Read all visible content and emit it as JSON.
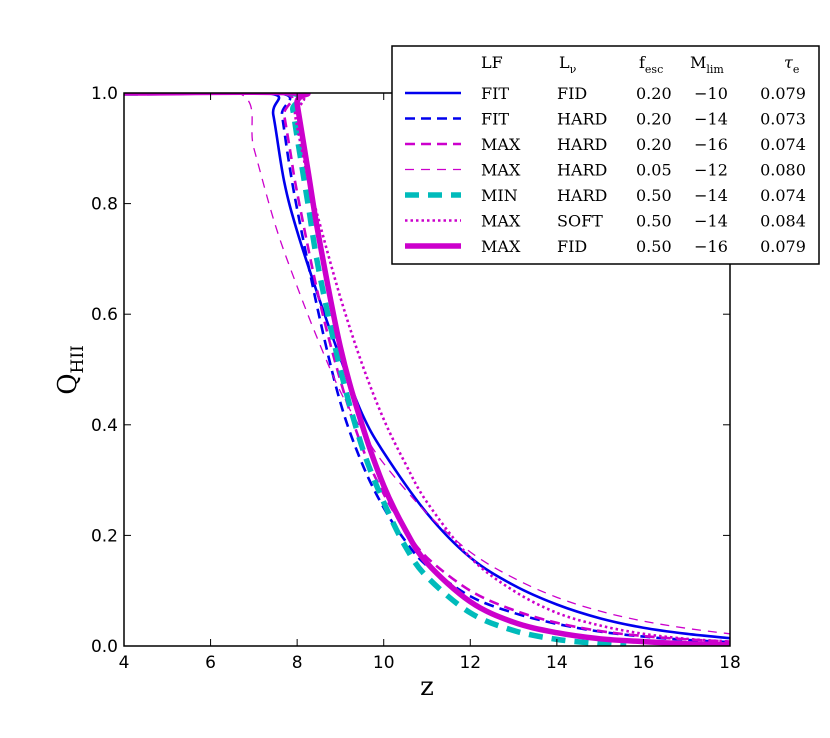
{
  "chart_data": {
    "type": "line",
    "title": "",
    "xlabel": "z",
    "ylabel_main": "Q",
    "ylabel_sub": "HII",
    "xlim": [
      4,
      18
    ],
    "ylim": [
      0.0,
      1.0
    ],
    "xticks": [
      4,
      6,
      8,
      10,
      12,
      14,
      16,
      18
    ],
    "xtick_labels": [
      "4",
      "6",
      "8",
      "10",
      "12",
      "14",
      "16",
      "18"
    ],
    "yticks": [
      0.0,
      0.2,
      0.4,
      0.6,
      0.8,
      1.0
    ],
    "ytick_labels": [
      "0.0",
      "0.2",
      "0.4",
      "0.6",
      "0.8",
      "1.0"
    ],
    "grid": false,
    "legend_position": "top-right",
    "legend_headers": {
      "lf": "LF",
      "lnu_main": "L",
      "lnu_sub": "ν",
      "fesc_main": "f",
      "fesc_sub": "esc",
      "mlim_main": "M",
      "mlim_sub": "lim",
      "tau_main": "τ",
      "tau_sub": "e"
    },
    "series": [
      {
        "name": "FIT FID 0.20 −10 0.079",
        "lf": "FIT",
        "lnu": "FID",
        "fesc": "0.20",
        "mlim": "−10",
        "tau": "0.079",
        "color": "#0000ee",
        "style": "solid",
        "weight": "medium",
        "x": [
          4,
          7.3,
          7.45,
          7.7,
          8.0,
          8.5,
          9.0,
          9.5,
          10.0,
          11.0,
          12.0,
          13.0,
          14.0,
          15.0,
          16.0,
          17.0,
          18.0
        ],
        "y": [
          1.0,
          1.0,
          0.96,
          0.84,
          0.75,
          0.63,
          0.52,
          0.42,
          0.35,
          0.24,
          0.16,
          0.11,
          0.075,
          0.05,
          0.033,
          0.022,
          0.014
        ]
      },
      {
        "name": "FIT HARD 0.20 −14 0.073",
        "lf": "FIT",
        "lnu": "HARD",
        "fesc": "0.20",
        "mlim": "−14",
        "tau": "0.073",
        "color": "#0000ee",
        "style": "dashed",
        "weight": "medium",
        "x": [
          4,
          7.55,
          7.65,
          7.8,
          8.0,
          8.5,
          9.0,
          9.5,
          10.0,
          10.5,
          11.0,
          12.0,
          13.0,
          14.0,
          15.0,
          16.0,
          17.0,
          18.0
        ],
        "y": [
          1.0,
          1.0,
          0.96,
          0.88,
          0.79,
          0.6,
          0.44,
          0.33,
          0.25,
          0.19,
          0.145,
          0.09,
          0.06,
          0.04,
          0.026,
          0.017,
          0.011,
          0.007
        ]
      },
      {
        "name": "MAX HARD 0.20 −16 0.074",
        "lf": "MAX",
        "lnu": "HARD",
        "fesc": "0.20",
        "mlim": "−16",
        "tau": "0.074",
        "color": "#cc00cc",
        "style": "dashed",
        "weight": "medium",
        "x": [
          4,
          7.6,
          7.7,
          7.85,
          8.0,
          8.5,
          9.0,
          9.5,
          10.0,
          10.5,
          11.0,
          12.0,
          13.0,
          14.0,
          15.0,
          16.0,
          17.0,
          18.0
        ],
        "y": [
          1.0,
          1.0,
          0.96,
          0.89,
          0.82,
          0.63,
          0.48,
          0.36,
          0.275,
          0.21,
          0.16,
          0.1,
          0.065,
          0.042,
          0.027,
          0.018,
          0.012,
          0.008
        ]
      },
      {
        "name": "MAX HARD 0.05 −12 0.080",
        "lf": "MAX",
        "lnu": "HARD",
        "fesc": "0.05",
        "mlim": "−12",
        "tau": "0.080",
        "color": "#cc00cc",
        "style": "dashed",
        "weight": "thin",
        "x": [
          4,
          6.65,
          7.0,
          7.5,
          8.0,
          8.5,
          9.0,
          9.5,
          10.0,
          11.0,
          12.0,
          13.0,
          14.0,
          15.0,
          16.0,
          17.0,
          18.0
        ],
        "y": [
          1.0,
          1.0,
          0.9,
          0.76,
          0.65,
          0.55,
          0.46,
          0.39,
          0.33,
          0.24,
          0.17,
          0.123,
          0.088,
          0.063,
          0.045,
          0.032,
          0.022
        ]
      },
      {
        "name": "MIN HARD 0.50 −14 0.074",
        "lf": "MIN",
        "lnu": "HARD",
        "fesc": "0.50",
        "mlim": "−14",
        "tau": "0.074",
        "color": "#00bbbb",
        "style": "dashed",
        "weight": "thick",
        "x": [
          4,
          7.8,
          7.9,
          8.0,
          8.25,
          8.5,
          9.0,
          9.5,
          10.0,
          10.5,
          11.0,
          12.0,
          13.0,
          14.0,
          15.0,
          15.6
        ],
        "y": [
          1.0,
          1.0,
          0.97,
          0.92,
          0.8,
          0.68,
          0.5,
          0.36,
          0.26,
          0.18,
          0.125,
          0.06,
          0.028,
          0.012,
          0.004,
          0.0
        ]
      },
      {
        "name": "MAX SOFT 0.50 −14 0.084",
        "lf": "MAX",
        "lnu": "SOFT",
        "fesc": "0.50",
        "mlim": "−14",
        "tau": "0.084",
        "color": "#cc00cc",
        "style": "dotted",
        "weight": "medium",
        "x": [
          4,
          7.85,
          7.95,
          8.1,
          8.3,
          8.5,
          9.0,
          9.5,
          10.0,
          10.5,
          11.0,
          12.0,
          13.0,
          14.0,
          15.0,
          16.0,
          17.0,
          18.0
        ],
        "y": [
          1.0,
          1.0,
          0.96,
          0.9,
          0.83,
          0.77,
          0.63,
          0.51,
          0.41,
          0.33,
          0.26,
          0.16,
          0.1,
          0.06,
          0.037,
          0.022,
          0.013,
          0.008
        ]
      },
      {
        "name": "MAX FID 0.50 −16 0.079",
        "lf": "MAX",
        "lnu": "FID",
        "fesc": "0.50",
        "mlim": "−16",
        "tau": "0.079",
        "color": "#cc00cc",
        "style": "solid",
        "weight": "thick",
        "x": [
          4,
          7.95,
          8.0,
          8.25,
          8.5,
          9.0,
          9.5,
          10.0,
          10.5,
          11.0,
          12.0,
          13.0,
          14.0,
          15.0,
          16.0,
          17.0,
          18.0
        ],
        "y": [
          1.0,
          1.0,
          0.98,
          0.86,
          0.74,
          0.54,
          0.4,
          0.29,
          0.21,
          0.15,
          0.08,
          0.043,
          0.024,
          0.013,
          0.008,
          0.004,
          0.002
        ]
      }
    ]
  }
}
